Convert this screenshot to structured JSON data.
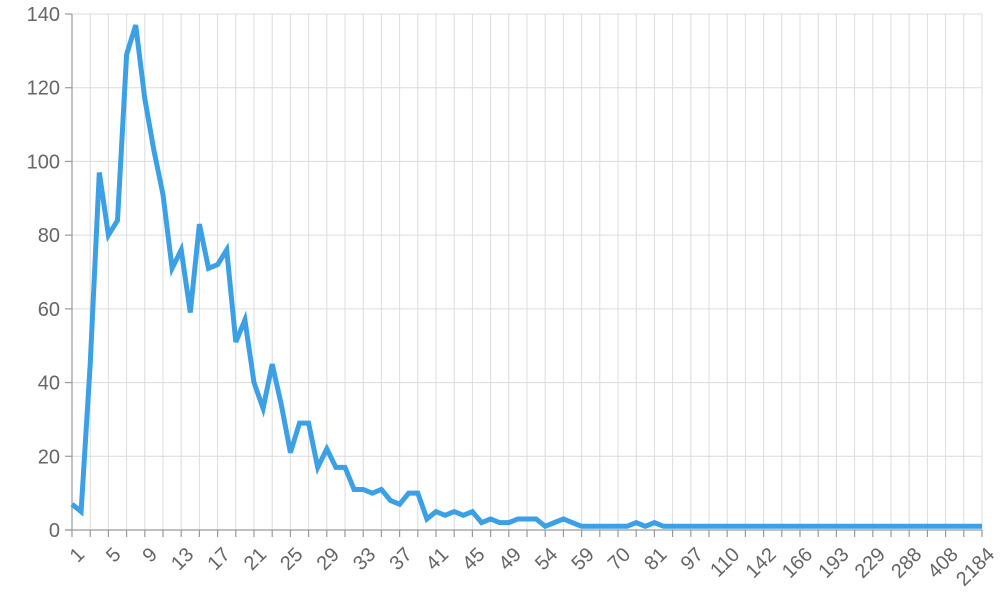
{
  "chart_data": {
    "type": "line",
    "title": "",
    "xlabel": "",
    "ylabel": "",
    "ylim": [
      0,
      140
    ],
    "y_ticks": [
      0,
      20,
      40,
      60,
      80,
      100,
      120,
      140
    ],
    "grid": true,
    "legend": "none",
    "colors": {
      "series": "#3ca0e6",
      "grid": "#dcdcdc",
      "axis": "#9a9a9a",
      "tick_text": "#666666"
    },
    "x_tick_labels": [
      "1",
      "5",
      "9",
      "13",
      "17",
      "21",
      "25",
      "29",
      "33",
      "37",
      "41",
      "45",
      "49",
      "54",
      "59",
      "70",
      "81",
      "97",
      "110",
      "142",
      "166",
      "193",
      "229",
      "288",
      "408",
      "2184"
    ],
    "series": [
      {
        "values": [
          7,
          5,
          45,
          97,
          80,
          84,
          129,
          137,
          117,
          103,
          91,
          71,
          76,
          59,
          83,
          71,
          72,
          76,
          51,
          57,
          40,
          33,
          45,
          34,
          21,
          29,
          29,
          17,
          22,
          17,
          17,
          11,
          11,
          10,
          11,
          8,
          7,
          10,
          10,
          3,
          5,
          4,
          5,
          4,
          5,
          2,
          3,
          2,
          2,
          3,
          3,
          3,
          1,
          2,
          3,
          2,
          1,
          1,
          1,
          1,
          1,
          1,
          2,
          1,
          2,
          1,
          1,
          1,
          1,
          1,
          1,
          1,
          1,
          1,
          1,
          1,
          1,
          1,
          1,
          1,
          1,
          1,
          1,
          1,
          1,
          1,
          1,
          1,
          1,
          1,
          1,
          1,
          1,
          1,
          1,
          1,
          1,
          1,
          1,
          1,
          1
        ]
      }
    ]
  }
}
